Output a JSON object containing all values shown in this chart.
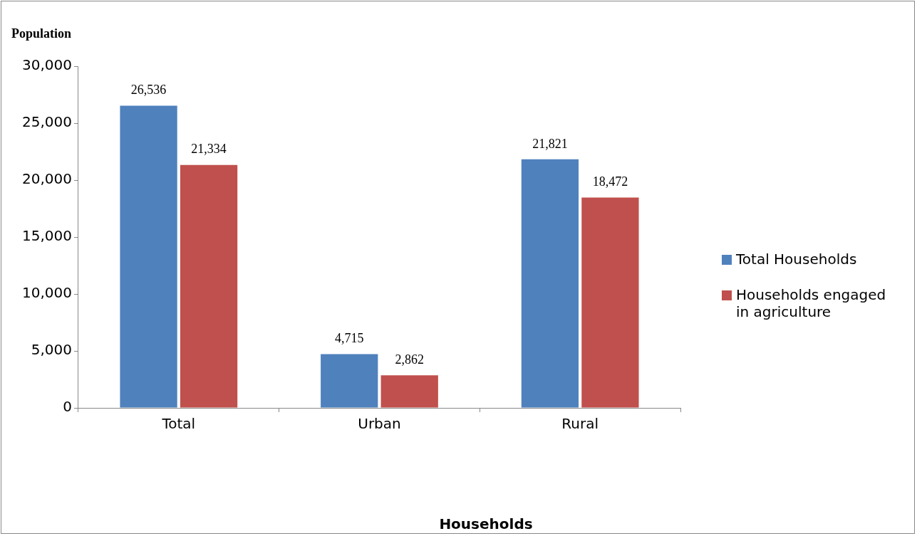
{
  "chart_data": {
    "type": "bar",
    "annotations": [
      "Households"
    ],
    "ylabel": "Population",
    "categories": [
      "Total",
      "Urban",
      "Rural"
    ],
    "series": [
      {
        "name": "Total Households",
        "color": "#4f81bd",
        "values": [
          26536,
          4715,
          21821
        ],
        "value_labels": [
          "26,536",
          "4,715",
          "21,821"
        ]
      },
      {
        "name": "Households engaged in agriculture",
        "color": "#c0504d",
        "values": [
          21334,
          2862,
          18472
        ],
        "value_labels": [
          "21,334",
          "2,862",
          "18,472"
        ]
      }
    ],
    "ylim": [
      0,
      30000
    ],
    "yticks": [
      {
        "value": 0,
        "label": "0"
      },
      {
        "value": 5000,
        "label": "5,000"
      },
      {
        "value": 10000,
        "label": "10,000"
      },
      {
        "value": 15000,
        "label": "15,000"
      },
      {
        "value": 20000,
        "label": "20,000"
      },
      {
        "value": 25000,
        "label": "25,000"
      },
      {
        "value": 30000,
        "label": "30,000"
      }
    ],
    "grid": false,
    "legend": "right"
  }
}
